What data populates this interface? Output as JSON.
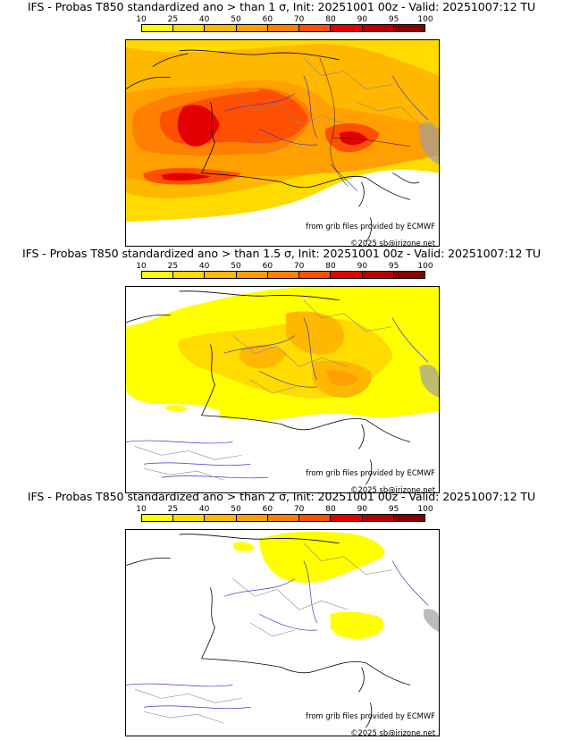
{
  "colorbar": {
    "ticks": [
      "10",
      "25",
      "40",
      "50",
      "60",
      "70",
      "80",
      "90",
      "95",
      "100"
    ],
    "colors": [
      "#ffff00",
      "#ffdb00",
      "#ffb700",
      "#ff9f00",
      "#ff7f00",
      "#ff4f00",
      "#e40000",
      "#b70000",
      "#870000"
    ]
  },
  "panels": [
    {
      "title": "IFS - Probas T850  standardized ano > than 1 σ, Init: 20251001 00z - Valid: 20251007:12 TU",
      "source": "from grib files provided by ECMWF",
      "copyright": "©2025 sb@irizone.net"
    },
    {
      "title": "IFS - Probas T850  standardized ano > than 1.5 σ, Init: 20251001 00z - Valid: 20251007:12 TU",
      "source": "from grib files provided by ECMWF",
      "copyright": "©2025 sb@irizone.net"
    },
    {
      "title": "IFS - Probas T850  standardized ano > than 2 σ, Init: 20251001 00z - Valid: 20251007:12 TU",
      "source": "from grib files provided by ECMWF",
      "copyright": "©2025 sb@irizone.net"
    }
  ]
}
